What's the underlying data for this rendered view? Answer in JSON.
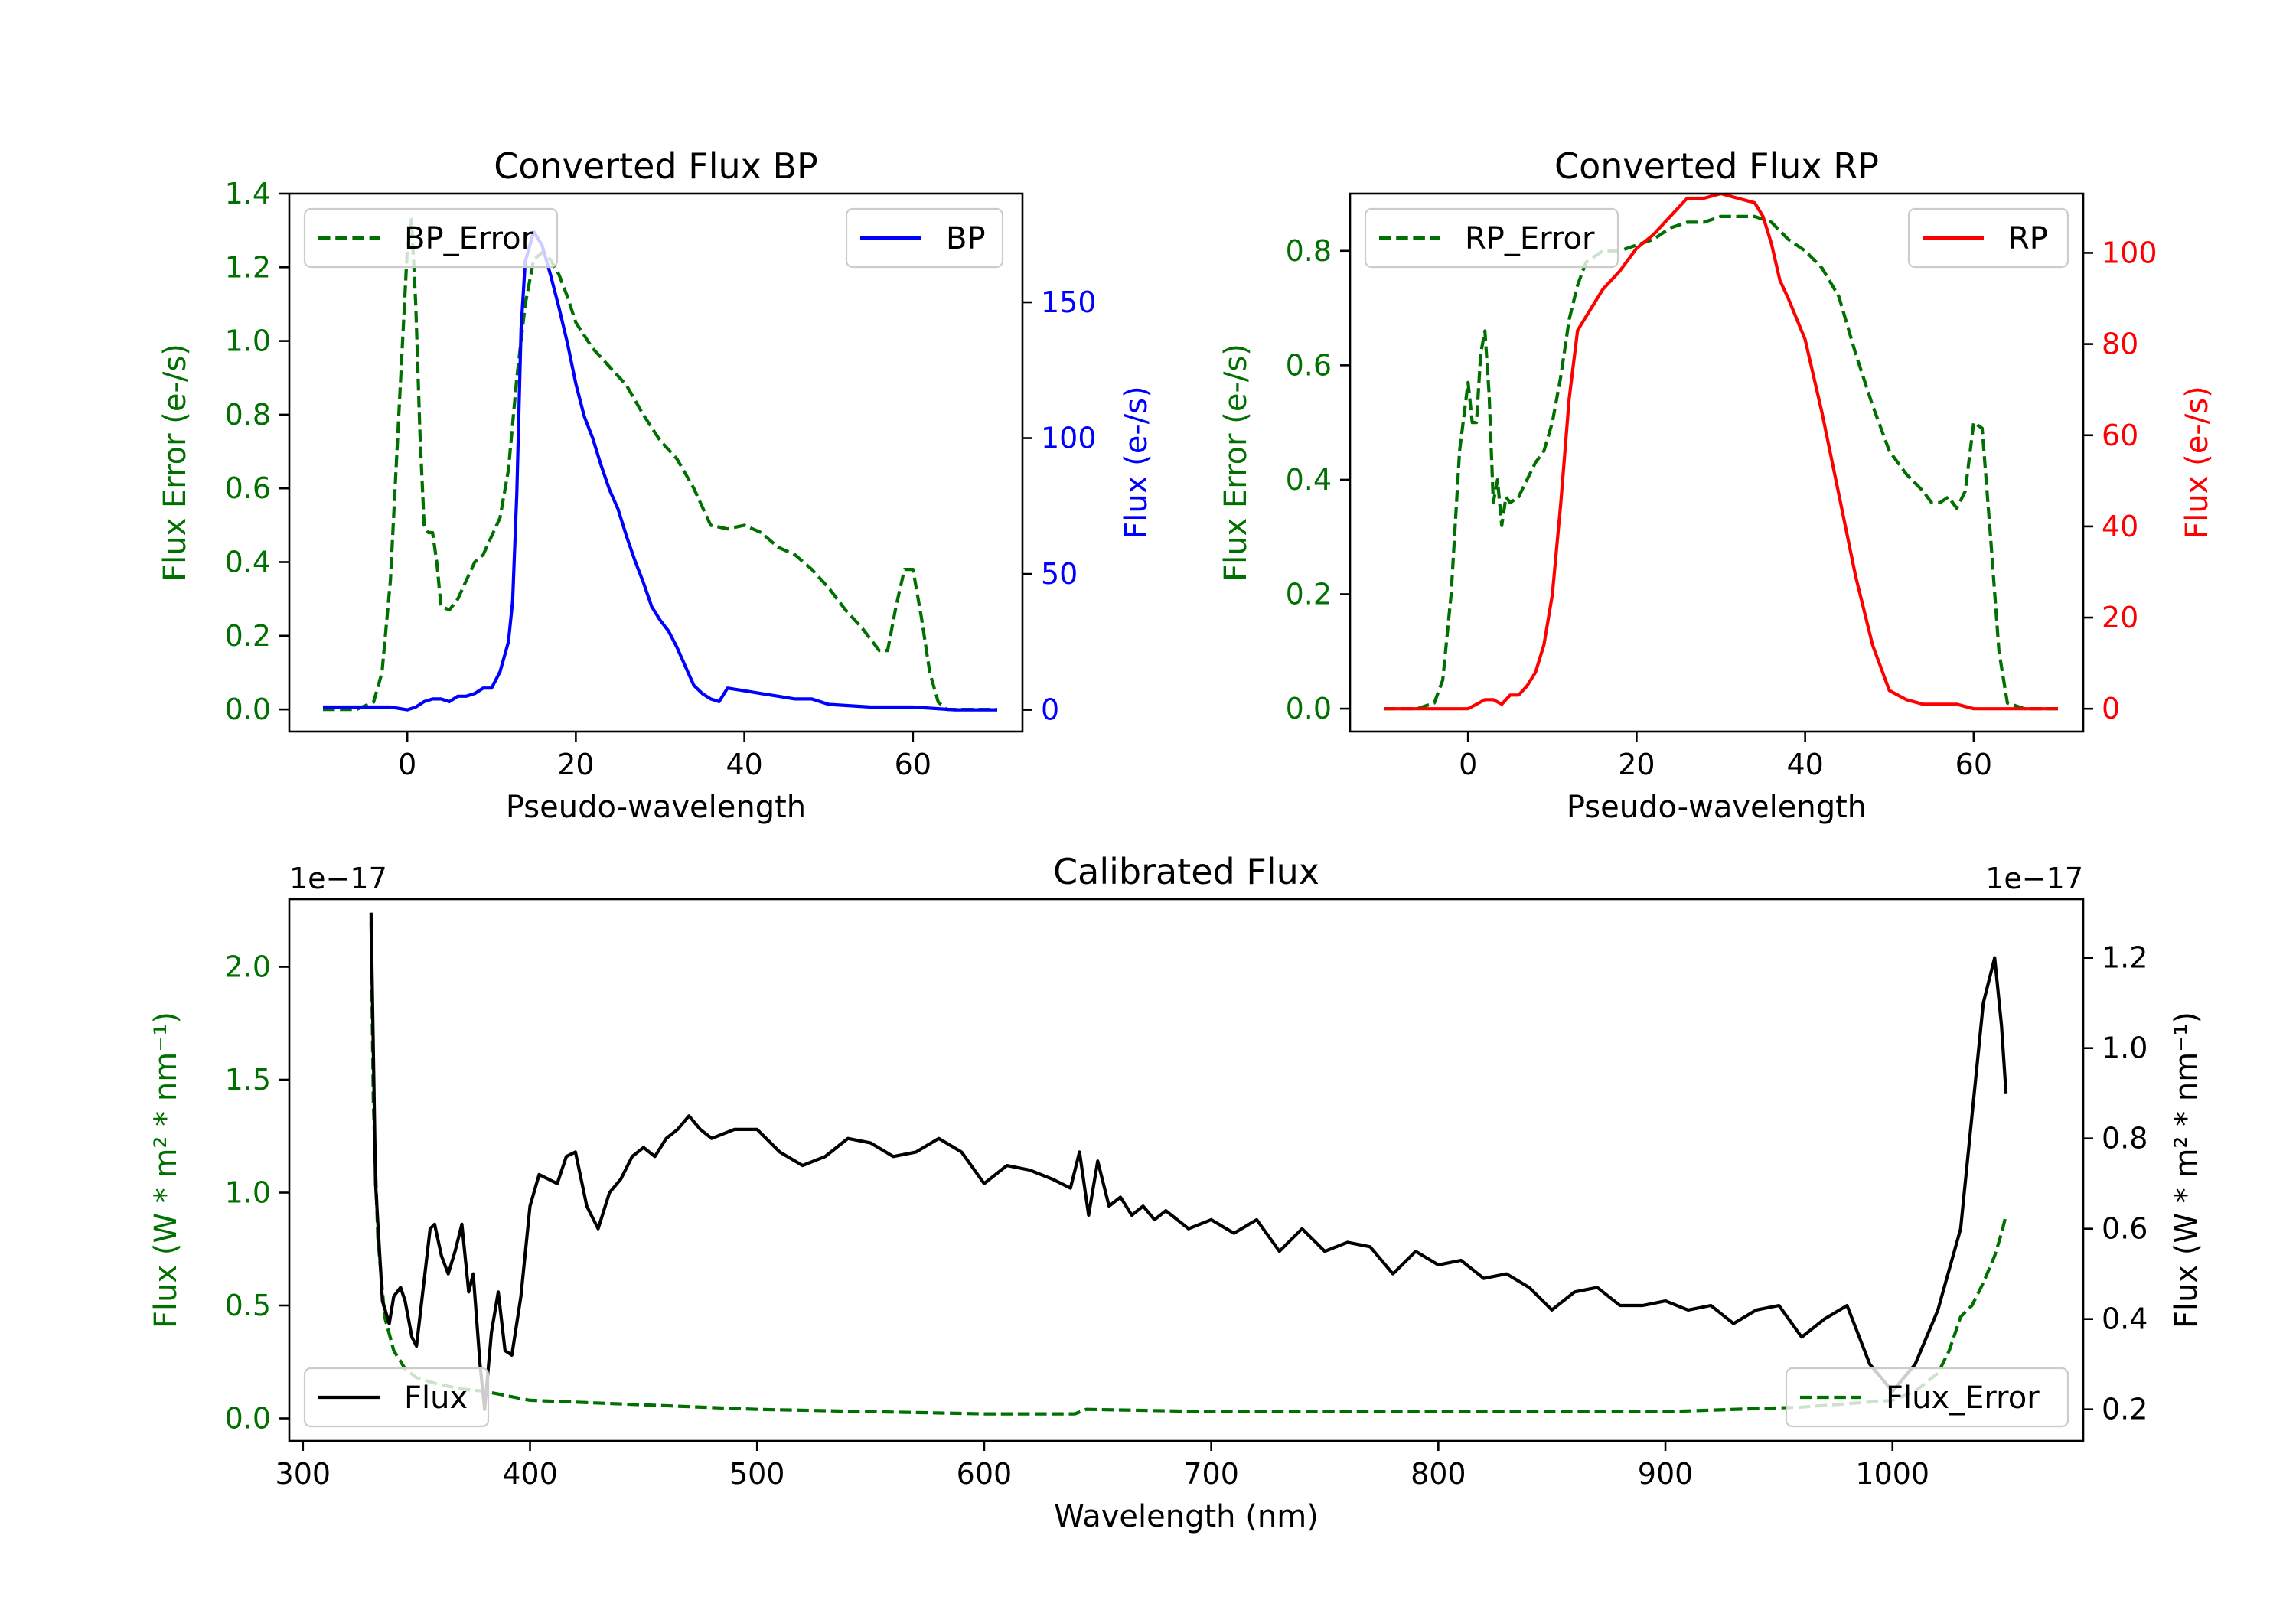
{
  "colors": {
    "error": "#007000",
    "bp": "#0000ff",
    "rp": "#ff0000",
    "cal": "#000000",
    "axis": "#000000"
  },
  "chart_data": [
    {
      "id": "bp",
      "type": "line",
      "title": "Converted Flux BP",
      "xlabel": "Pseudo-wavelength",
      "ylabel_left": "Flux Error (e-/s)",
      "ylabel_right": "Flux (e-/s)",
      "xlim": [
        -14,
        73
      ],
      "ylim_left": [
        -0.06,
        1.4
      ],
      "ylim_right": [
        -8,
        190
      ],
      "xticks": [
        0,
        20,
        40,
        60
      ],
      "xtick_labels": [
        "0",
        "20",
        "40",
        "60"
      ],
      "yticks_left": [
        0.0,
        0.2,
        0.4,
        0.6,
        0.8,
        1.0,
        1.2,
        1.4
      ],
      "ytick_labels_left": [
        "0.0",
        "0.2",
        "0.4",
        "0.6",
        "0.8",
        "1.0",
        "1.2",
        "1.4"
      ],
      "yticks_right": [
        0,
        50,
        100,
        150
      ],
      "ytick_labels_right": [
        "0",
        "50",
        "100",
        "150"
      ],
      "legend_left": "top-left",
      "legend_right": "top-right",
      "series": [
        {
          "name": "BP_Error",
          "axis": "left",
          "style": "dashed",
          "color_key": "error",
          "x": [
            -10,
            -6,
            -4,
            -3,
            -2,
            -1,
            0,
            0.5,
            1,
            1.5,
            2,
            2.5,
            3,
            3.5,
            4,
            5,
            6,
            7,
            8,
            9,
            10,
            11,
            12,
            13,
            14,
            15,
            16,
            17,
            18,
            19,
            20,
            22,
            24,
            26,
            28,
            30,
            32,
            34,
            36,
            38,
            40,
            42,
            44,
            46,
            48,
            50,
            52,
            54,
            56,
            57,
            58,
            59,
            60,
            61,
            62,
            63,
            64,
            66,
            68,
            70
          ],
          "y": [
            0.0,
            0.0,
            0.02,
            0.1,
            0.35,
            0.8,
            1.25,
            1.33,
            1.1,
            0.75,
            0.5,
            0.48,
            0.48,
            0.4,
            0.28,
            0.27,
            0.3,
            0.35,
            0.4,
            0.42,
            0.47,
            0.52,
            0.65,
            0.9,
            1.1,
            1.22,
            1.24,
            1.22,
            1.18,
            1.12,
            1.05,
            0.98,
            0.93,
            0.88,
            0.8,
            0.73,
            0.68,
            0.6,
            0.5,
            0.49,
            0.5,
            0.48,
            0.44,
            0.42,
            0.38,
            0.33,
            0.27,
            0.22,
            0.16,
            0.16,
            0.28,
            0.38,
            0.38,
            0.25,
            0.1,
            0.02,
            0.0,
            0.0,
            0.0,
            0.0
          ]
        },
        {
          "name": "BP",
          "axis": "right",
          "style": "solid",
          "color_key": "bp",
          "x": [
            -10,
            -6,
            -2,
            0,
            1,
            2,
            3,
            4,
            5,
            6,
            7,
            8,
            9,
            10,
            11,
            12,
            12.5,
            13,
            13.5,
            14,
            15,
            16,
            17,
            18,
            19,
            20,
            21,
            22,
            23,
            24,
            25,
            26,
            27,
            28,
            29,
            30,
            31,
            32,
            33,
            34,
            35,
            36,
            37,
            38,
            40,
            42,
            44,
            46,
            48,
            50,
            55,
            60,
            65,
            70
          ],
          "y": [
            1,
            1,
            1,
            0,
            1,
            3,
            4,
            4,
            3,
            5,
            5,
            6,
            8,
            8,
            14,
            25,
            40,
            80,
            140,
            165,
            176,
            171,
            160,
            148,
            135,
            120,
            108,
            100,
            90,
            81,
            74,
            64,
            55,
            47,
            38,
            33,
            29,
            23,
            16,
            9,
            6,
            4,
            3,
            8,
            7,
            6,
            5,
            4,
            4,
            2,
            1,
            1,
            0,
            0
          ]
        }
      ]
    },
    {
      "id": "rp",
      "type": "line",
      "title": "Converted Flux RP",
      "xlabel": "Pseudo-wavelength",
      "ylabel_left": "Flux Error (e-/s)",
      "ylabel_right": "Flux (e-/s)",
      "xlim": [
        -14,
        73
      ],
      "ylim_left": [
        -0.04,
        0.9
      ],
      "ylim_right": [
        -5,
        113
      ],
      "xticks": [
        0,
        20,
        40,
        60
      ],
      "xtick_labels": [
        "0",
        "20",
        "40",
        "60"
      ],
      "yticks_left": [
        0.0,
        0.2,
        0.4,
        0.6,
        0.8
      ],
      "ytick_labels_left": [
        "0.0",
        "0.2",
        "0.4",
        "0.6",
        "0.8"
      ],
      "yticks_right": [
        0,
        20,
        40,
        60,
        80,
        100
      ],
      "ytick_labels_right": [
        "0",
        "20",
        "40",
        "60",
        "80",
        "100"
      ],
      "legend_left": "top-left",
      "legend_right": "top-right",
      "series": [
        {
          "name": "RP_Error",
          "axis": "left",
          "style": "dashed",
          "color_key": "error",
          "x": [
            -10,
            -6,
            -4,
            -3,
            -2,
            -1,
            0,
            0.5,
            1,
            1.5,
            2,
            2.5,
            3,
            3.5,
            4,
            4.5,
            5,
            6,
            7,
            8,
            9,
            10,
            11,
            12,
            13,
            14,
            15,
            16,
            18,
            20,
            22,
            24,
            26,
            28,
            30,
            32,
            34,
            36,
            38,
            40,
            42,
            44,
            46,
            48,
            50,
            52,
            54,
            55,
            56,
            57,
            58,
            59,
            60,
            61,
            62,
            63,
            64,
            66,
            68,
            70
          ],
          "y": [
            0.0,
            0.0,
            0.01,
            0.05,
            0.2,
            0.45,
            0.57,
            0.5,
            0.5,
            0.62,
            0.66,
            0.55,
            0.36,
            0.4,
            0.32,
            0.37,
            0.36,
            0.37,
            0.4,
            0.43,
            0.45,
            0.5,
            0.58,
            0.68,
            0.74,
            0.78,
            0.79,
            0.8,
            0.8,
            0.81,
            0.82,
            0.84,
            0.85,
            0.85,
            0.86,
            0.86,
            0.86,
            0.85,
            0.82,
            0.8,
            0.77,
            0.72,
            0.62,
            0.53,
            0.45,
            0.41,
            0.38,
            0.36,
            0.36,
            0.37,
            0.35,
            0.38,
            0.5,
            0.49,
            0.3,
            0.1,
            0.01,
            0.0,
            0.0,
            0.0
          ]
        },
        {
          "name": "RP",
          "axis": "right",
          "style": "solid",
          "color_key": "rp",
          "x": [
            -10,
            -6,
            -2,
            0,
            1,
            2,
            3,
            4,
            5,
            6,
            7,
            8,
            9,
            10,
            11,
            12,
            13,
            14,
            15,
            16,
            18,
            20,
            22,
            24,
            26,
            28,
            30,
            32,
            34,
            35,
            36,
            37,
            38,
            40,
            42,
            44,
            46,
            48,
            50,
            52,
            54,
            56,
            58,
            60,
            62,
            64,
            66,
            68,
            70
          ],
          "y": [
            0,
            0,
            0,
            0,
            1,
            2,
            2,
            1,
            3,
            3,
            5,
            8,
            14,
            25,
            45,
            68,
            83,
            86,
            89,
            92,
            96,
            101,
            104,
            108,
            112,
            112,
            113,
            112,
            111,
            108,
            102,
            94,
            90,
            81,
            65,
            47,
            29,
            14,
            4,
            2,
            1,
            1,
            1,
            0,
            0,
            0,
            0,
            0,
            0
          ]
        }
      ]
    },
    {
      "id": "cal",
      "type": "line",
      "title": "Calibrated Flux",
      "xlabel": "Wavelength (nm)",
      "ylabel_left": "Flux (W * m² * nm⁻¹)",
      "ylabel_right": "Flux (W * m² * nm⁻¹)",
      "offset_left": "1e−17",
      "offset_right": "1e−17",
      "xlim": [
        294,
        1084
      ],
      "ylim_left": [
        -0.1,
        2.3
      ],
      "ylim_right": [
        0.13,
        1.33
      ],
      "xticks": [
        300,
        400,
        500,
        600,
        700,
        800,
        900,
        1000
      ],
      "xtick_labels": [
        "300",
        "400",
        "500",
        "600",
        "700",
        "800",
        "900",
        "1000"
      ],
      "yticks_left": [
        0.0,
        0.5,
        1.0,
        1.5,
        2.0
      ],
      "ytick_labels_left": [
        "0.0",
        "0.5",
        "1.0",
        "1.5",
        "2.0"
      ],
      "yticks_right": [
        0.2,
        0.4,
        0.6,
        0.8,
        1.0,
        1.2
      ],
      "ytick_labels_right": [
        "0.2",
        "0.4",
        "0.6",
        "0.8",
        "1.0",
        "1.2"
      ],
      "legend_left": "bottom-left",
      "legend_right": "bottom-right",
      "series": [
        {
          "name": "Flux_Error",
          "axis": "left",
          "style": "dashed",
          "color_key": "error",
          "x": [
            330,
            331,
            333,
            336,
            340,
            345,
            350,
            360,
            370,
            380,
            390,
            400,
            450,
            500,
            550,
            600,
            640,
            645,
            700,
            800,
            900,
            960,
            1000,
            1010,
            1020,
            1025,
            1030,
            1035,
            1040,
            1045,
            1048,
            1050
          ],
          "y": [
            2.2,
            1.4,
            0.8,
            0.45,
            0.3,
            0.22,
            0.18,
            0.15,
            0.13,
            0.12,
            0.1,
            0.08,
            0.06,
            0.04,
            0.03,
            0.02,
            0.02,
            0.04,
            0.03,
            0.03,
            0.03,
            0.05,
            0.08,
            0.12,
            0.2,
            0.3,
            0.45,
            0.5,
            0.6,
            0.72,
            0.82,
            0.9
          ]
        },
        {
          "name": "Flux",
          "axis": "right",
          "style": "solid",
          "color_key": "cal",
          "x": [
            330,
            332,
            335,
            338,
            340,
            343,
            345,
            348,
            350,
            353,
            356,
            358,
            361,
            364,
            367,
            370,
            373,
            375,
            378,
            380,
            383,
            386,
            389,
            392,
            396,
            400,
            404,
            408,
            412,
            416,
            420,
            425,
            430,
            435,
            440,
            445,
            450,
            455,
            460,
            465,
            470,
            475,
            480,
            490,
            500,
            510,
            520,
            530,
            540,
            550,
            560,
            570,
            580,
            590,
            600,
            610,
            620,
            630,
            638,
            642,
            646,
            650,
            655,
            660,
            665,
            670,
            675,
            680,
            690,
            700,
            710,
            720,
            730,
            740,
            750,
            760,
            770,
            780,
            790,
            800,
            810,
            820,
            830,
            840,
            850,
            860,
            870,
            880,
            890,
            900,
            910,
            920,
            930,
            940,
            950,
            960,
            970,
            980,
            990,
            1000,
            1010,
            1020,
            1030,
            1035,
            1040,
            1045,
            1048,
            1050
          ],
          "y": [
            1.3,
            0.7,
            0.44,
            0.39,
            0.45,
            0.47,
            0.44,
            0.36,
            0.34,
            0.47,
            0.6,
            0.61,
            0.54,
            0.5,
            0.55,
            0.61,
            0.46,
            0.5,
            0.3,
            0.2,
            0.37,
            0.46,
            0.33,
            0.32,
            0.45,
            0.65,
            0.72,
            0.71,
            0.7,
            0.76,
            0.77,
            0.65,
            0.6,
            0.68,
            0.71,
            0.76,
            0.78,
            0.76,
            0.8,
            0.82,
            0.85,
            0.82,
            0.8,
            0.82,
            0.82,
            0.77,
            0.74,
            0.76,
            0.8,
            0.79,
            0.76,
            0.77,
            0.8,
            0.77,
            0.7,
            0.74,
            0.73,
            0.71,
            0.69,
            0.77,
            0.63,
            0.75,
            0.65,
            0.67,
            0.63,
            0.65,
            0.62,
            0.64,
            0.6,
            0.62,
            0.59,
            0.62,
            0.55,
            0.6,
            0.55,
            0.57,
            0.56,
            0.5,
            0.55,
            0.52,
            0.53,
            0.49,
            0.5,
            0.47,
            0.42,
            0.46,
            0.47,
            0.43,
            0.43,
            0.44,
            0.42,
            0.43,
            0.39,
            0.42,
            0.43,
            0.36,
            0.4,
            0.43,
            0.3,
            0.24,
            0.3,
            0.42,
            0.6,
            0.85,
            1.1,
            1.2,
            1.05,
            0.9
          ]
        }
      ]
    }
  ]
}
